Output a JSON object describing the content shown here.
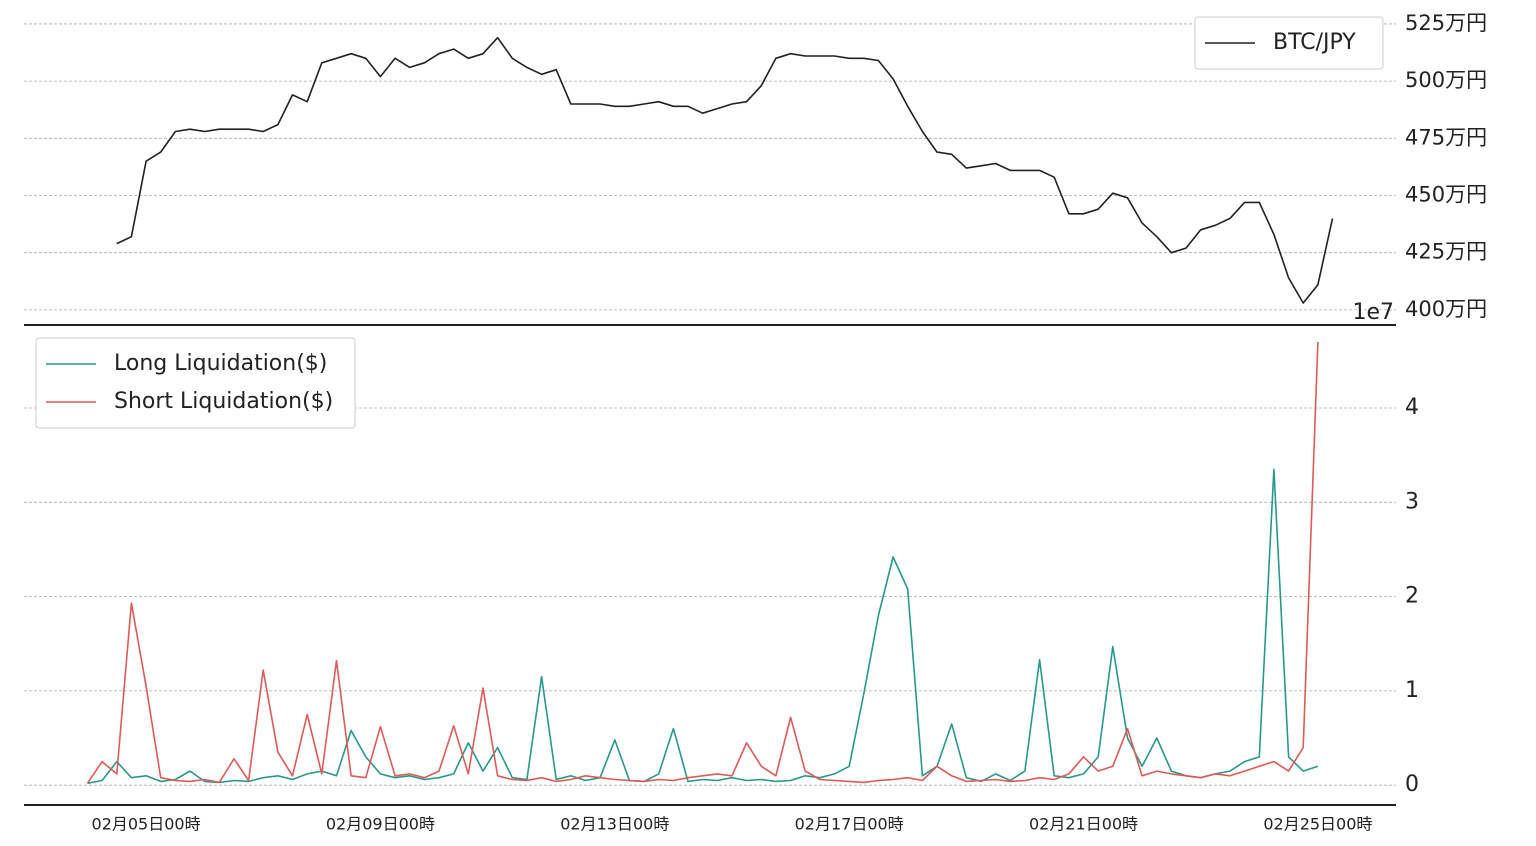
{
  "chart_data": [
    {
      "type": "line",
      "x": [
        "02月04日00時",
        "02月04日06時",
        "02月04日12時",
        "02月04日18時",
        "02月05日00時",
        "02月05日06時",
        "02月05日12時",
        "02月05日18時",
        "02月06日00時",
        "02月06日06時",
        "02月06日12時",
        "02月06日18時",
        "02月07日00時",
        "02月07日06時",
        "02月07日12時",
        "02月07日18時",
        "02月08日00時",
        "02月08日06時",
        "02月08日12時",
        "02月08日18時",
        "02月09日00時",
        "02月09日06時",
        "02月09日12時",
        "02月09日18時",
        "02月10日00時",
        "02月10日06時",
        "02月10日12時",
        "02月10日18時",
        "02月11日00時",
        "02月11日06時",
        "02月11日12時",
        "02月11日18時",
        "02月12日00時",
        "02月12日06時",
        "02月12日12時",
        "02月12日18時",
        "02月13日00時",
        "02月13日06時",
        "02月13日12時",
        "02月13日18時",
        "02月14日00時",
        "02月14日06時",
        "02月14日12時",
        "02月14日18時",
        "02月15日00時",
        "02月15日06時",
        "02月15日12時",
        "02月15日18時",
        "02月16日00時",
        "02月16日06時",
        "02月16日12時",
        "02月16日18時",
        "02月17日00時",
        "02月17日06時",
        "02月17日12時",
        "02月17日18時",
        "02月18日00時",
        "02月18日06時",
        "02月18日12時",
        "02月18日18時",
        "02月19日00時",
        "02月19日06時",
        "02月19日12時",
        "02月19日18時",
        "02月20日00時",
        "02月20日06時",
        "02月20日12時",
        "02月20日18時",
        "02月21日00時",
        "02月21日06時",
        "02月21日12時",
        "02月21日18時",
        "02月22日00時",
        "02月22日06時",
        "02月22日12時",
        "02月22日18時",
        "02月23日00時",
        "02月23日06時",
        "02月23日12時",
        "02月23日18時",
        "02月24日00時",
        "02月24日06時",
        "02月24日12時",
        "02月24日18時",
        "02月25日00時",
        "02月25日06時"
      ],
      "series": [
        {
          "name": "BTC/JPY",
          "color": "#222222",
          "values": [
            null,
            null,
            4290000,
            4320000,
            4650000,
            4690000,
            4780000,
            4790000,
            4780000,
            4790000,
            4790000,
            4790000,
            4780000,
            4810000,
            4940000,
            4910000,
            5080000,
            5100000,
            5120000,
            5100000,
            5020000,
            5100000,
            5060000,
            5080000,
            5120000,
            5140000,
            5100000,
            5120000,
            5190000,
            5100000,
            5060000,
            5030000,
            5050000,
            4900000,
            4900000,
            4900000,
            4890000,
            4890000,
            4900000,
            4910000,
            4890000,
            4890000,
            4860000,
            4880000,
            4900000,
            4910000,
            4980000,
            5100000,
            5120000,
            5110000,
            5110000,
            5110000,
            5100000,
            5100000,
            5090000,
            5010000,
            4890000,
            4780000,
            4690000,
            4680000,
            4620000,
            4630000,
            4640000,
            4610000,
            4610000,
            4610000,
            4580000,
            4420000,
            4420000,
            4440000,
            4510000,
            4490000,
            4380000,
            4320000,
            4250000,
            4270000,
            4350000,
            4370000,
            4400000,
            4470000,
            4470000,
            4330000,
            4140000,
            4030000,
            4110000,
            4400000
          ]
        }
      ],
      "xlim": [
        "02月02日22時",
        "02月26日08時"
      ],
      "ylim": [
        3934000,
        5276000
      ],
      "yticks": [
        {
          "value": 4000000,
          "label": "400万円"
        },
        {
          "value": 4250000,
          "label": "425万円"
        },
        {
          "value": 4500000,
          "label": "450万円"
        },
        {
          "value": 4750000,
          "label": "475万円"
        },
        {
          "value": 5000000,
          "label": "500万円"
        },
        {
          "value": 5250000,
          "label": "525万円"
        }
      ],
      "grid": true,
      "legend": "upper right"
    },
    {
      "type": "line",
      "x": [
        "02月04日00時",
        "02月04日06時",
        "02月04日12時",
        "02月04日18時",
        "02月05日00時",
        "02月05日06時",
        "02月05日12時",
        "02月05日18時",
        "02月06日00時",
        "02月06日06時",
        "02月06日12時",
        "02月06日18時",
        "02月07日00時",
        "02月07日06時",
        "02月07日12時",
        "02月07日18時",
        "02月08日00時",
        "02月08日06時",
        "02月08日12時",
        "02月08日18時",
        "02月09日00時",
        "02月09日06時",
        "02月09日12時",
        "02月09日18時",
        "02月10日00時",
        "02月10日06時",
        "02月10日12時",
        "02月10日18時",
        "02月11日00時",
        "02月11日06時",
        "02月11日12時",
        "02月11日18時",
        "02月12日00時",
        "02月12日06時",
        "02月12日12時",
        "02月12日18時",
        "02月13日00時",
        "02月13日06時",
        "02月13日12時",
        "02月13日18時",
        "02月14日00時",
        "02月14日06時",
        "02月14日12時",
        "02月14日18時",
        "02月15日00時",
        "02月15日06時",
        "02月15日12時",
        "02月15日18時",
        "02月16日00時",
        "02月16日06時",
        "02月16日12時",
        "02月16日18時",
        "02月17日00時",
        "02月17日06時",
        "02月17日12時",
        "02月17日18時",
        "02月18日00時",
        "02月18日06時",
        "02月18日12時",
        "02月18日18時",
        "02月19日00時",
        "02月19日06時",
        "02月19日12時",
        "02月19日18時",
        "02月20日00時",
        "02月20日06時",
        "02月20日12時",
        "02月20日18時",
        "02月21日00時",
        "02月21日06時",
        "02月21日12時",
        "02月21日18時",
        "02月22日00時",
        "02月22日06時",
        "02月22日12時",
        "02月22日18時",
        "02月23日00時",
        "02月23日06時",
        "02月23日12時",
        "02月23日18時",
        "02月24日00時",
        "02月24日06時",
        "02月24日12時",
        "02月24日18時",
        "02月25日00時",
        "02月25日06時"
      ],
      "series": [
        {
          "name": "Long Liquidation($)",
          "color": "#26998a",
          "values": [
            0.02,
            0.05,
            0.25,
            0.08,
            0.1,
            0.04,
            0.06,
            0.15,
            0.04,
            0.03,
            0.05,
            0.04,
            0.08,
            0.1,
            0.06,
            0.12,
            0.15,
            0.1,
            0.58,
            0.3,
            0.12,
            0.08,
            0.1,
            0.06,
            0.08,
            0.12,
            0.45,
            0.15,
            0.4,
            0.08,
            0.06,
            1.15,
            0.06,
            0.1,
            0.05,
            0.08,
            0.48,
            0.05,
            0.04,
            0.12,
            0.6,
            0.04,
            0.06,
            0.05,
            0.08,
            0.05,
            0.06,
            0.04,
            0.05,
            0.1,
            0.08,
            0.12,
            0.2,
            0.97,
            1.8,
            2.42,
            2.08,
            0.1,
            0.2,
            0.65,
            0.08,
            0.04,
            0.12,
            0.05,
            0.15,
            1.33,
            0.1,
            0.08,
            0.12,
            0.3,
            1.47,
            0.5,
            0.2,
            0.5,
            0.15,
            0.1,
            0.08,
            0.12,
            0.15,
            0.25,
            0.3,
            3.35,
            0.3,
            0.15,
            0.2,
            null
          ]
        },
        {
          "name": "Short Liquidation($)",
          "color": "#e05a55",
          "values": [
            0.02,
            0.25,
            0.12,
            1.93,
            1.05,
            0.08,
            0.05,
            0.04,
            0.06,
            0.03,
            0.28,
            0.05,
            1.22,
            0.35,
            0.1,
            0.75,
            0.12,
            1.32,
            0.1,
            0.08,
            0.62,
            0.1,
            0.12,
            0.08,
            0.15,
            0.63,
            0.12,
            1.03,
            0.1,
            0.06,
            0.05,
            0.08,
            0.04,
            0.06,
            0.1,
            0.08,
            0.06,
            0.05,
            0.04,
            0.06,
            0.05,
            0.08,
            0.1,
            0.12,
            0.1,
            0.45,
            0.2,
            0.1,
            0.72,
            0.15,
            0.06,
            0.05,
            0.04,
            0.03,
            0.05,
            0.06,
            0.08,
            0.05,
            0.2,
            0.1,
            0.04,
            0.05,
            0.06,
            0.04,
            0.05,
            0.08,
            0.06,
            0.12,
            0.3,
            0.15,
            0.2,
            0.6,
            0.1,
            0.15,
            0.12,
            0.1,
            0.08,
            0.12,
            0.1,
            0.15,
            0.2,
            0.25,
            0.15,
            0.4,
            4.7,
            null
          ]
        }
      ],
      "xlim": [
        "02月02日22時",
        "02月26日08時"
      ],
      "xticks": [
        "02月05日00時",
        "02月09日00時",
        "02月13日00時",
        "02月17日00時",
        "02月21日00時",
        "02月25日00時"
      ],
      "ylim": [
        -0.21,
        4.88
      ],
      "yticks": [
        0,
        1,
        2,
        3,
        4
      ],
      "y_offset_label": "1e7",
      "grid": true,
      "legend": "upper left"
    }
  ]
}
